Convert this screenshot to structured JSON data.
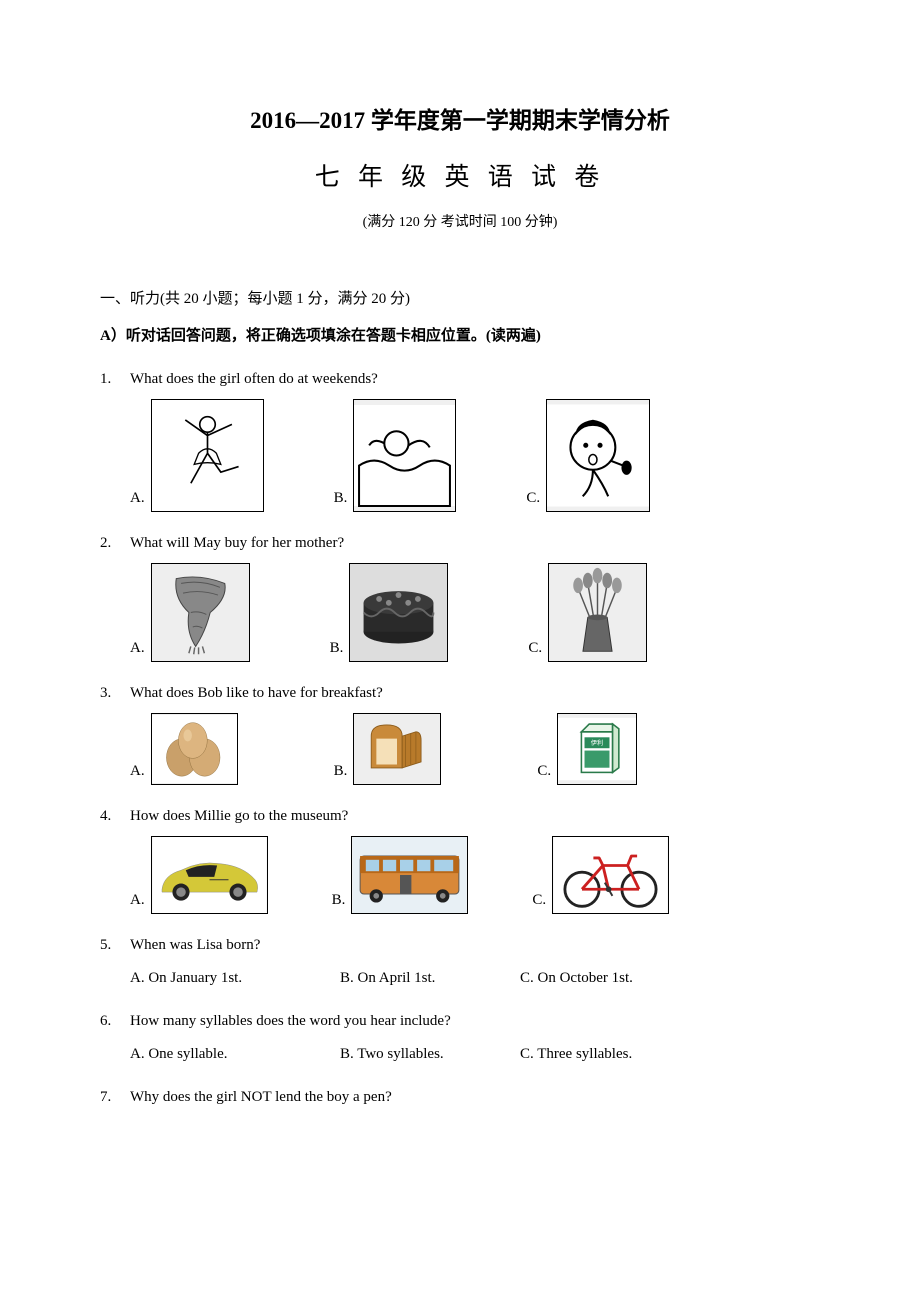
{
  "header": {
    "title_main": "2016—2017 学年度第一学期期末学情分析",
    "title_sub": "七 年 级 英 语 试 卷",
    "title_note": "(满分 120 分  考试时间 100 分钟)"
  },
  "section": {
    "heading": "一、听力(共 20 小题；每小题 1 分，满分 20 分)",
    "sub_heading": "A）听对话回答问题，将正确选项填涂在答题卡相应位置。(读两遍)"
  },
  "questions": [
    {
      "num": "1.",
      "text": "What does the girl often do at weekends?",
      "type": "image",
      "row_class": "q1",
      "opts": [
        {
          "label": "A.",
          "cls": "q1a",
          "alt": "dancer-ballet"
        },
        {
          "label": "B.",
          "cls": "q1b",
          "alt": "swimming"
        },
        {
          "label": "C.",
          "cls": "q1c",
          "alt": "singing-girl"
        }
      ]
    },
    {
      "num": "2.",
      "text": "What will May buy for her mother?",
      "type": "image",
      "row_class": "q2",
      "opts": [
        {
          "label": "A.",
          "cls": "q2a",
          "alt": "scarf"
        },
        {
          "label": "B.",
          "cls": "q2b",
          "alt": "birthday-cake"
        },
        {
          "label": "C.",
          "cls": "q2c",
          "alt": "flowers-vase"
        }
      ]
    },
    {
      "num": "3.",
      "text": "What does Bob like to have for breakfast?",
      "type": "image",
      "row_class": "q3",
      "opts": [
        {
          "label": "A.",
          "cls": "q3a",
          "alt": "eggs"
        },
        {
          "label": "B.",
          "cls": "q3b",
          "alt": "bread-loaf"
        },
        {
          "label": "C.",
          "cls": "q3c",
          "alt": "milk-carton"
        }
      ]
    },
    {
      "num": "4.",
      "text": "How does Millie go to the museum?",
      "type": "image",
      "row_class": "q4",
      "opts": [
        {
          "label": "A.",
          "cls": "q4a",
          "alt": "sports-car"
        },
        {
          "label": "B.",
          "cls": "q4b",
          "alt": "bus"
        },
        {
          "label": "C.",
          "cls": "q4c",
          "alt": "bicycle"
        }
      ]
    },
    {
      "num": "5.",
      "text": "When was Lisa born?",
      "type": "text",
      "opts": [
        {
          "label": "A. On January 1st."
        },
        {
          "label": "B. On April 1st."
        },
        {
          "label": "C. On October 1st."
        }
      ]
    },
    {
      "num": "6.",
      "text": "How many syllables does the word you hear include?",
      "type": "text",
      "opts": [
        {
          "label": "A. One syllable."
        },
        {
          "label": "B. Two syllables."
        },
        {
          "label": "C. Three syllables."
        }
      ]
    },
    {
      "num": "7.",
      "text": "Why does the girl NOT lend the boy a pen?",
      "type": "text",
      "opts": []
    }
  ],
  "svg": {
    "dancer-ballet": "<svg viewBox='0 0 100 100' width='100%' height='100%'><rect width='100' height='100' fill='#fff'/><circle cx='50' cy='22' r='7' fill='none' stroke='#000' stroke-width='1.5'/><path d='M50 29 L50 48 M50 32 L30 18 M50 32 L72 22 M50 48 L35 75 M50 48 L62 65 L78 60' fill='none' stroke='#000' stroke-width='1.5'/><path d='M42 48 Q50 40 58 48 L62 58 Q50 55 38 58 Z' fill='none' stroke='#000' stroke-width='1.2'/></svg>",
    "swimming": "<svg viewBox='0 0 100 100' width='100%' height='100%'><rect width='100' height='100' fill='#fff'/><path d='M5 60 Q20 50 35 60 T65 60 T95 60 L95 100 L5 100 Z' fill='none' stroke='#000' stroke-width='2'/><circle cx='42' cy='38' r='12' fill='none' stroke='#000' stroke-width='2'/><path d='M54 40 Q68 30 75 42' fill='none' stroke='#000' stroke-width='2'/><path d='M30 38 Q20 32 15 40' fill='none' stroke='#000' stroke-width='2'/></svg>",
    "singing-girl": "<svg viewBox='0 0 100 100' width='100%' height='100%'><rect width='100' height='100' fill='#fff'/><circle cx='45' cy='42' r='22' fill='none' stroke='#000' stroke-width='2'/><path d='M28 30 Q45 10 62 30 Q62 18 45 15 Q28 18 28 30 Z' fill='#000'/><circle cx='38' cy='40' r='2.5' fill='#000'/><circle cx='52' cy='40' r='2.5' fill='#000'/><ellipse cx='45' cy='54' rx='4' ry='5' fill='none' stroke='#000' stroke-width='1.5'/><path d='M62 55 L75 60' stroke='#000' stroke-width='2'/><ellipse cx='78' cy='62' rx='5' ry='7' fill='#000'/><path d='M45 64 Q45 80 35 90 M45 64 Q55 78 60 90' fill='none' stroke='#000' stroke-width='2'/></svg>",
    "scarf": "<svg viewBox='0 0 100 100' width='100%' height='100%'><rect width='100' height='100' fill='#eee'/><path d='M25 15 Q50 10 75 20 Q78 35 60 50 Q55 70 45 85 Q35 70 38 50 Q22 35 25 15 Z' fill='#888' stroke='#444' stroke-width='1'/><path d='M30 20 Q50 16 70 24 M32 30 Q50 26 68 32 M40 50 Q48 48 56 52 M42 65 Q46 63 52 66' fill='none' stroke='#555' stroke-width='1'/><path d='M40 85 L38 92 M44 86 L43 93 M48 86 L48 93 M52 85 L54 92' stroke='#666' stroke-width='1.5'/></svg>",
    "birthday-cake": "<svg viewBox='0 0 100 100' width='100%' height='100%'><rect width='100' height='100' fill='#ddd'/><ellipse cx='50' cy='70' rx='36' ry='12' fill='#222'/><rect x='14' y='40' width='72' height='30' fill='#2a2a2a'/><ellipse cx='50' cy='40' rx='36' ry='12' fill='#3a3a3a'/><path d='M14 50 Q22 58 30 50 T46 50 T62 50 T78 50 T86 50' fill='none' stroke='#666' stroke-width='2'/><circle cx='30' cy='36' r='3' fill='#888'/><circle cx='50' cy='32' r='3' fill='#888'/><circle cx='70' cy='36' r='3' fill='#888'/><circle cx='40' cy='40' r='3' fill='#888'/><circle cx='60' cy='40' r='3' fill='#888'/></svg>",
    "flowers-vase": "<svg viewBox='0 0 100 100' width='100%' height='100%'><rect width='100' height='100' fill='#eee'/><path d='M40 55 L35 90 L65 90 L60 55 Z' fill='#666' stroke='#333' stroke-width='1'/><ellipse cx='50' cy='55' rx='10' ry='3' fill='#555'/><line x1='42' y1='55' x2='30' y2='25' stroke='#555' stroke-width='1.5'/><line x1='46' y1='55' x2='40' y2='20' stroke='#555' stroke-width='1.5'/><line x1='50' y1='55' x2='50' y2='15' stroke='#555' stroke-width='1.5'/><line x1='54' y1='55' x2='60' y2='20' stroke='#555' stroke-width='1.5'/><line x1='58' y1='55' x2='70' y2='25' stroke='#555' stroke-width='1.5'/><ellipse cx='30' cy='22' rx='5' ry='8' fill='#999'/><ellipse cx='40' cy='17' rx='5' ry='8' fill='#888'/><ellipse cx='50' cy='12' rx='5' ry='8' fill='#999'/><ellipse cx='60' cy='17' rx='5' ry='8' fill='#888'/><ellipse cx='70' cy='22' rx='5' ry='8' fill='#999'/></svg>",
    "eggs": "<svg viewBox='0 0 100 80' width='100%' height='100%'><rect width='100' height='80' fill='#fff'/><ellipse cx='35' cy='50' rx='18' ry='22' fill='#c9a06a' stroke='#8a6a3a' stroke-width='0.5'/><ellipse cx='62' cy='50' rx='18' ry='22' fill='#d4ab75' stroke='#8a6a3a' stroke-width='0.5'/><ellipse cx='48' cy='30' rx='17' ry='21' fill='#ddb580' stroke='#8a6a3a' stroke-width='0.5'/><ellipse cx='42' cy='24' rx='5' ry='7' fill='#f0d5a8' opacity='0.6'/></svg>",
    "bread-loaf": "<svg viewBox='0 0 100 80' width='100%' height='100%'><rect width='100' height='80' fill='#eee'/><path d='M20 25 Q20 12 38 12 Q56 12 56 25 L56 62 L20 62 Z' fill='#c98a3a' stroke='#8a5a1a' stroke-width='1'/><path d='M26 28 L50 28 L50 58 L26 58 Z' fill='#f5e0b8'/><path d='M56 25 L72 20 Q78 20 78 30 L78 55 L56 62 Z' fill='#b87a2a' stroke='#8a5a1a' stroke-width='1'/><line x1='60' y1='24' x2='60' y2='60' stroke='#8a5a1a' stroke-width='0.8'/><line x1='66' y1='22' x2='66' y2='58' stroke='#8a5a1a' stroke-width='0.8'/><line x1='72' y1='21' x2='72' y2='56' stroke='#8a5a1a' stroke-width='0.8'/></svg>",
    "milk-carton": "<svg viewBox='0 0 100 80' width='100%' height='100%'><rect width='100' height='80' fill='#fff'/><rect x='30' y='18' width='40' height='52' fill='#fff' stroke='#2a7a4a' stroke-width='2'/><path d='M30 18 L40 8 L70 8 L70 18 Z' fill='#e8f5e8' stroke='#2a7a4a' stroke-width='2'/><path d='M70 8 L78 14 L78 64 L70 70 Z' fill='#d0ead0' stroke='#2a7a4a' stroke-width='2'/><rect x='34' y='25' width='32' height='14' fill='#2a8a5a'/><rect x='34' y='42' width='32' height='22' fill='#3a9a6a'/><text x='50' y='35' font-size='8' fill='#fff' text-anchor='middle' font-family='sans-serif'>伊利</text></svg>",
    "sports-car": "<svg viewBox='0 0 120 80' width='100%' height='100%'><rect width='120' height='80' fill='#fff'/><path d='M10 55 Q12 40 30 35 Q50 25 70 28 Q95 30 108 45 Q112 50 110 58 L10 58 Z' fill='#d4c838' stroke='#888' stroke-width='0.5'/><path d='M35 35 Q50 28 68 30 L65 42 L38 42 Z' fill='#222'/><circle cx='30' cy='58' r='9' fill='#222'/><circle cx='30' cy='58' r='5' fill='#888'/><circle cx='90' cy='58' r='9' fill='#222'/><circle cx='90' cy='58' r='5' fill='#888'/><path d='M60 45 L80 45' stroke='#333' stroke-width='1'/></svg>",
    "bus": "<svg viewBox='0 0 120 80' width='100%' height='100%'><rect width='120' height='80' fill='#e8f0f5'/><rect x='8' y='20' width='104' height='40' rx='4' fill='#d88838' stroke='#555' stroke-width='1'/><rect x='8' y='20' width='104' height='18' fill='#b86818'/><rect x='14' y='24' width='14' height='12' fill='#a8d0e8'/><rect x='32' y='24' width='14' height='12' fill='#a8d0e8'/><rect x='50' y='24' width='14' height='12' fill='#a8d0e8'/><rect x='68' y='24' width='14' height='12' fill='#a8d0e8'/><rect x='86' y='24' width='20' height='12' fill='#a8d0e8'/><rect x='50' y='40' width='12' height='20' fill='#555'/><circle cx='25' cy='62' r='7' fill='#222'/><circle cx='25' cy='62' r='3' fill='#888'/><circle cx='95' cy='62' r='7' fill='#222'/><circle cx='95' cy='62' r='3' fill='#888'/></svg>",
    "bicycle": "<svg viewBox='0 0 120 80' width='100%' height='100%'><rect width='120' height='80' fill='#fff'/><circle cx='30' cy='55' r='18' fill='none' stroke='#222' stroke-width='3'/><circle cx='90' cy='55' r='18' fill='none' stroke='#222' stroke-width='3'/><path d='M30 55 L52 30 L78 30 L90 55 M52 30 L58 55 L30 55 M58 55 L90 55 M78 30 L82 20 L88 20 M52 30 L48 22 L42 22' fill='none' stroke='#cc2020' stroke-width='3' stroke-linejoin='round'/><circle cx='58' cy='55' r='3' fill='#333'/><line x1='58' y1='55' x2='62' y2='62' stroke='#333' stroke-width='2'/><line x1='58' y1='55' x2='54' y2='48' stroke='#333' stroke-width='2'/></svg>"
  }
}
